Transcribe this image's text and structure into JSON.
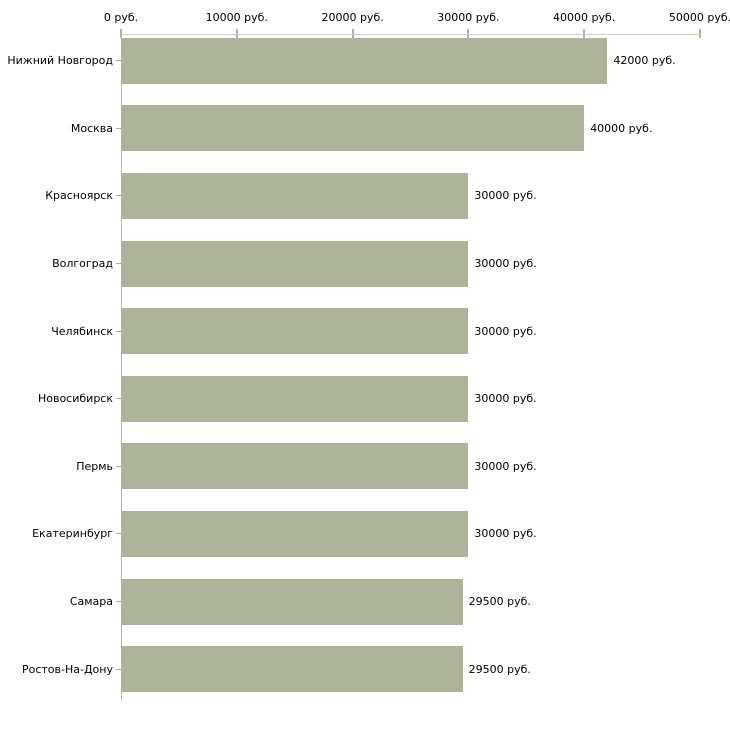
{
  "chart_data": {
    "type": "bar",
    "orientation": "horizontal",
    "title": "",
    "xlabel": "",
    "ylabel": "",
    "categories": [
      "Нижний Новгород",
      "Москва",
      "Красноярск",
      "Волгоград",
      "Челябинск",
      "Новосибирск",
      "Пермь",
      "Екатеринбург",
      "Самара",
      "Ростов-На-Дону"
    ],
    "values": [
      42000,
      40000,
      30000,
      30000,
      30000,
      30000,
      30000,
      30000,
      29500,
      29500
    ],
    "value_labels": [
      "42000 руб.",
      "40000 руб.",
      "30000 руб.",
      "30000 руб.",
      "30000 руб.",
      "30000 руб.",
      "30000 руб.",
      "30000 руб.",
      "29500 руб.",
      "29500 руб."
    ],
    "x_axis": {
      "position": "top",
      "range": [
        0,
        50000
      ],
      "ticks": [
        0,
        10000,
        20000,
        30000,
        40000,
        50000
      ],
      "tick_labels": [
        "0 руб.",
        "10000 руб.",
        "20000 руб.",
        "30000 руб.",
        "40000 руб.",
        "50000 руб."
      ]
    },
    "grid": "off",
    "legend": "none",
    "colors": {
      "bar": "#aeb49a",
      "axis_line_top": "#cdcdbd",
      "axis_line_left": "#b3b3b3",
      "axis_tick": "#b2b28e",
      "category_tick": "#a9a9a2",
      "text": "#000000",
      "background": "#ffffff"
    }
  }
}
